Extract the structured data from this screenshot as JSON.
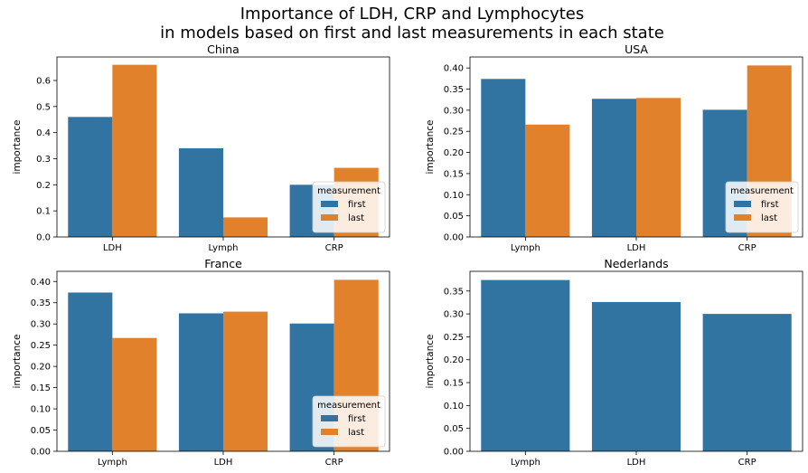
{
  "figure": {
    "title_line1": "Importance of LDH, CRP and Lymphocytes",
    "title_line2": "in models based on first and last measurements in each state"
  },
  "colors": {
    "first": "#3274a1",
    "last": "#e1812c"
  },
  "chart_data": [
    {
      "type": "bar",
      "title": "China",
      "ylabel": "importance",
      "xlabel": "",
      "categories": [
        "LDH",
        "Lymph",
        "CRP"
      ],
      "series": [
        {
          "name": "first",
          "values": [
            0.46,
            0.34,
            0.2
          ]
        },
        {
          "name": "last",
          "values": [
            0.66,
            0.075,
            0.265
          ]
        }
      ],
      "ylim": [
        0,
        0.69
      ],
      "yticks": [
        "0.0",
        "0.1",
        "0.2",
        "0.3",
        "0.4",
        "0.5",
        "0.6"
      ],
      "legend": {
        "title": "measurement",
        "position": "lower-right"
      }
    },
    {
      "type": "bar",
      "title": "USA",
      "ylabel": "importance",
      "xlabel": "",
      "categories": [
        "Lymph",
        "LDH",
        "CRP"
      ],
      "series": [
        {
          "name": "first",
          "values": [
            0.374,
            0.327,
            0.301
          ]
        },
        {
          "name": "last",
          "values": [
            0.266,
            0.329,
            0.406
          ]
        }
      ],
      "ylim": [
        0,
        0.426
      ],
      "yticks": [
        "0.00",
        "0.05",
        "0.10",
        "0.15",
        "0.20",
        "0.25",
        "0.30",
        "0.35",
        "0.40"
      ],
      "legend": {
        "title": "measurement",
        "position": "lower-right"
      }
    },
    {
      "type": "bar",
      "title": "France",
      "ylabel": "importance",
      "xlabel": "",
      "categories": [
        "Lymph",
        "LDH",
        "CRP"
      ],
      "series": [
        {
          "name": "first",
          "values": [
            0.374,
            0.325,
            0.301
          ]
        },
        {
          "name": "last",
          "values": [
            0.267,
            0.329,
            0.404
          ]
        }
      ],
      "ylim": [
        0,
        0.424
      ],
      "yticks": [
        "0.00",
        "0.05",
        "0.10",
        "0.15",
        "0.20",
        "0.25",
        "0.30",
        "0.35",
        "0.40"
      ],
      "legend": {
        "title": "measurement",
        "position": "lower-right"
      }
    },
    {
      "type": "bar",
      "title": "Nederlands",
      "ylabel": "importance",
      "xlabel": "",
      "categories": [
        "Lymph",
        "LDH",
        "CRP"
      ],
      "series": [
        {
          "name": "first",
          "values": [
            0.374,
            0.326,
            0.3
          ]
        }
      ],
      "ylim": [
        0,
        0.393
      ],
      "yticks": [
        "0.00",
        "0.05",
        "0.10",
        "0.15",
        "0.20",
        "0.25",
        "0.30",
        "0.35"
      ],
      "legend": null
    }
  ]
}
